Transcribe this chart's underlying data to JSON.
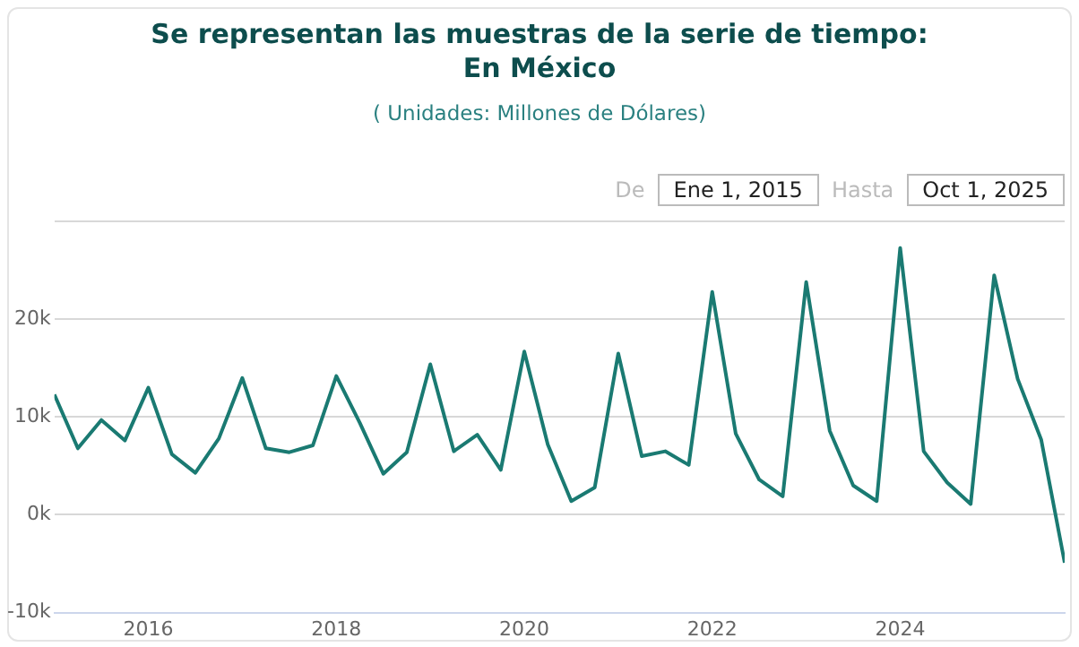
{
  "chart_data": {
    "type": "line",
    "title": "Se representan las muestras de la serie de tiempo:\nEn México",
    "subtitle": "( Unidades:  Millones de Dólares)",
    "annotations": [
      "De",
      "Ene 1, 2015",
      "Hasta",
      "Oct 1, 2025"
    ],
    "x": [
      "2015-01",
      "2015-04",
      "2015-07",
      "2015-10",
      "2016-01",
      "2016-04",
      "2016-07",
      "2016-10",
      "2017-01",
      "2017-04",
      "2017-07",
      "2017-10",
      "2018-01",
      "2018-04",
      "2018-07",
      "2018-10",
      "2019-01",
      "2019-04",
      "2019-07",
      "2019-10",
      "2020-01",
      "2020-04",
      "2020-07",
      "2020-10",
      "2021-01",
      "2021-04",
      "2021-07",
      "2021-10",
      "2022-01",
      "2022-04",
      "2022-07",
      "2022-10",
      "2023-01",
      "2023-04",
      "2023-07",
      "2023-10",
      "2024-01",
      "2024-04",
      "2024-07",
      "2024-10",
      "2025-01",
      "2025-04",
      "2025-07",
      "2025-10"
    ],
    "series": [
      {
        "color": "#1a7a72",
        "values": [
          12300,
          6800,
          9700,
          7600,
          13000,
          6200,
          4300,
          7800,
          14000,
          6800,
          6400,
          7100,
          14200,
          9400,
          4200,
          6400,
          15400,
          6500,
          8200,
          4600,
          16700,
          7200,
          1400,
          2800,
          16500,
          6000,
          6500,
          5100,
          22800,
          8300,
          3600,
          1900,
          23800,
          8600,
          3000,
          1400,
          27300,
          6500,
          3300,
          1100,
          24500,
          13900,
          7700,
          -4900
        ]
      }
    ],
    "xlim": [
      "2015-01",
      "2025-10"
    ],
    "xticks": [
      "2016",
      "2018",
      "2020",
      "2022",
      "2024"
    ],
    "ylim": [
      -10000,
      30000
    ],
    "yticks": [
      {
        "value": -10000,
        "label": "-10k"
      },
      {
        "value": 0,
        "label": "0k"
      },
      {
        "value": 10000,
        "label": "10k"
      },
      {
        "value": 20000,
        "label": "20k"
      },
      {
        "value": 30000,
        "label": null
      }
    ],
    "grid": "y",
    "legend": false,
    "marker": "none",
    "line_style": "solid"
  }
}
